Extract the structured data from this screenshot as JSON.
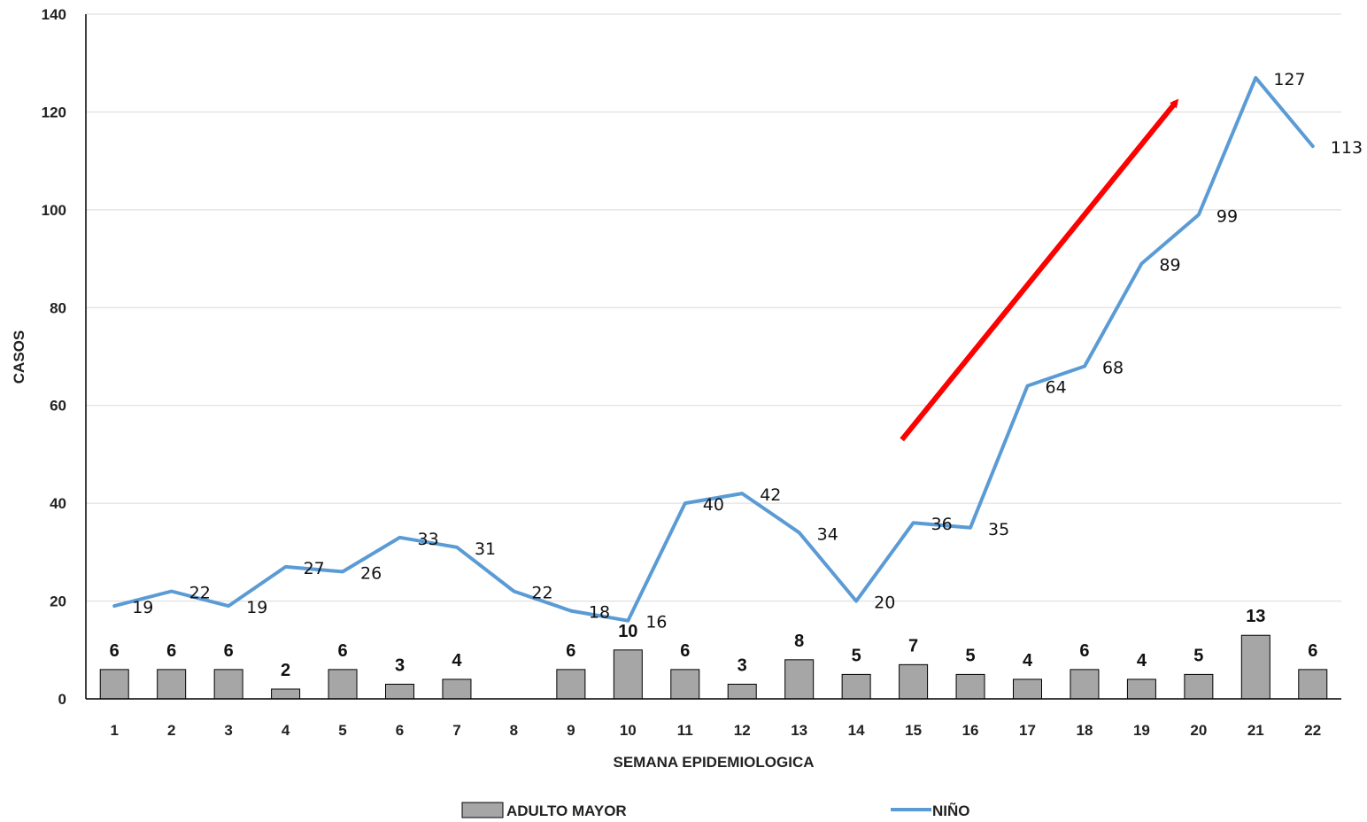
{
  "chart_data": {
    "type": "bar+line",
    "title": "",
    "xlabel": "SEMANA EPIDEMIOLOGICA",
    "ylabel": "CASOS",
    "ylim": [
      0,
      140
    ],
    "yticks": [
      0,
      20,
      40,
      60,
      80,
      100,
      120,
      140
    ],
    "grid": true,
    "legend_position": "bottom",
    "categories": [
      "1",
      "2",
      "3",
      "4",
      "5",
      "6",
      "7",
      "8",
      "9",
      "10",
      "11",
      "12",
      "13",
      "14",
      "15",
      "16",
      "17",
      "18",
      "19",
      "20",
      "21",
      "22"
    ],
    "series": [
      {
        "name": "ADULTO MAYOR",
        "type": "bar",
        "color": "#a6a6a6",
        "values": [
          6,
          6,
          6,
          2,
          6,
          3,
          4,
          0,
          6,
          10,
          6,
          3,
          8,
          5,
          7,
          5,
          4,
          6,
          4,
          5,
          13,
          6
        ],
        "labels": [
          "6",
          "6",
          "6",
          "2",
          "6",
          "3",
          "4",
          "",
          "6",
          "10",
          "6",
          "3",
          "8",
          "5",
          "7",
          "5",
          "4",
          "6",
          "4",
          "5",
          "13",
          "6"
        ]
      },
      {
        "name": "NIÑO",
        "type": "line",
        "color": "#5b9bd5",
        "values": [
          19,
          22,
          19,
          27,
          26,
          33,
          31,
          22,
          18,
          16,
          40,
          42,
          34,
          20,
          36,
          35,
          64,
          68,
          89,
          99,
          127,
          113
        ],
        "labels": [
          "19",
          "22",
          "19",
          "27",
          "26",
          "33",
          "31",
          "22",
          "18",
          "16",
          "40",
          "42",
          "34",
          "20",
          "36",
          "35",
          "64",
          "68",
          "89",
          "99",
          "127",
          "113"
        ]
      }
    ],
    "annotations": [
      {
        "type": "arrow",
        "color": "#ff0000",
        "from": {
          "x": 14.8,
          "y": 53
        },
        "to": {
          "x": 19.6,
          "y": 122
        }
      }
    ]
  }
}
